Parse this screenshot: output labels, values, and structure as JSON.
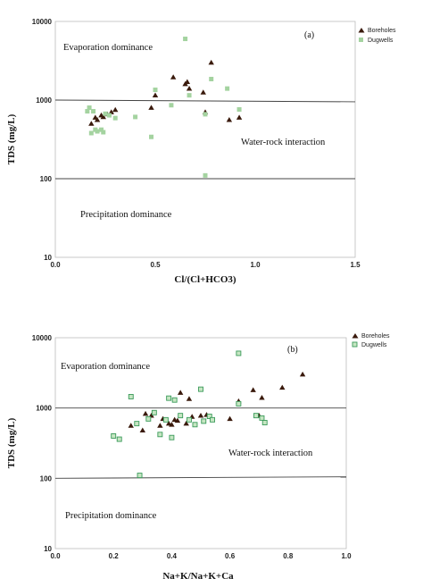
{
  "colors": {
    "boreholes": "#3a1a0c",
    "dugwells": "#a4d3a0",
    "dugwells_b_fill": "#c6e6c2",
    "dugwells_b_edge": "#3a9a5a"
  },
  "chart_data": [
    {
      "type": "scatter",
      "panel_label": "(a)",
      "xlabel": "Cl/(Cl+HCO3)",
      "ylabel": "TDS (mg/L)",
      "xlim": [
        0,
        1.5
      ],
      "ylim": [
        10,
        10000
      ],
      "yscale": "log",
      "grid": false,
      "legend_position": "top-right",
      "x_ticks": [
        "0.0",
        "0.5",
        "1.0",
        "1.5"
      ],
      "y_ticks": [
        "10",
        "100",
        "1000",
        "10000"
      ],
      "reference_lines": [
        {
          "x": [
            0,
            1.5
          ],
          "y": [
            1000,
            950
          ]
        },
        {
          "x": [
            0,
            1.5
          ],
          "y": [
            100,
            100
          ]
        }
      ],
      "regions": [
        "Evaporation dominance",
        "Water-rock interaction",
        "Precipitation dominance"
      ],
      "series": [
        {
          "name": "Boreholes",
          "marker": "triangle",
          "x": [
            0.18,
            0.2,
            0.21,
            0.23,
            0.24,
            0.26,
            0.28,
            0.3,
            0.48,
            0.5,
            0.59,
            0.65,
            0.66,
            0.67,
            0.74,
            0.75,
            0.78,
            0.87,
            0.92
          ],
          "y": [
            500,
            600,
            560,
            640,
            610,
            660,
            700,
            750,
            800,
            1150,
            1950,
            1600,
            1700,
            1400,
            1250,
            700,
            3000,
            560,
            600
          ]
        },
        {
          "name": "Dugwells",
          "marker": "square",
          "x": [
            0.16,
            0.17,
            0.18,
            0.19,
            0.2,
            0.21,
            0.23,
            0.24,
            0.25,
            0.27,
            0.3,
            0.4,
            0.48,
            0.5,
            0.58,
            0.65,
            0.67,
            0.75,
            0.75,
            0.78,
            0.86,
            0.92
          ],
          "y": [
            720,
            800,
            380,
            720,
            420,
            400,
            420,
            390,
            670,
            640,
            590,
            610,
            340,
            1350,
            860,
            6000,
            1150,
            660,
            110,
            1850,
            1400,
            760
          ]
        }
      ]
    },
    {
      "type": "scatter",
      "panel_label": "(b)",
      "xlabel": "Na+K/Na+K+Ca",
      "ylabel": "TDS (mg/L)",
      "xlim": [
        0,
        1.0
      ],
      "ylim": [
        10,
        10000
      ],
      "yscale": "log",
      "grid": false,
      "legend_position": "top-right",
      "x_ticks": [
        "0.0",
        "0.2",
        "0.4",
        "0.6",
        "0.8",
        "1.0"
      ],
      "y_ticks": [
        "10",
        "100",
        "1000",
        "10000"
      ],
      "reference_lines": [
        {
          "x": [
            0,
            1.0
          ],
          "y": [
            1000,
            1000
          ]
        },
        {
          "x": [
            0,
            1.0
          ],
          "y": [
            100,
            105
          ]
        }
      ],
      "regions": [
        "Evaporation dominance",
        "Water-rock interaction",
        "Precipitation dominance"
      ],
      "series": [
        {
          "name": "Boreholes",
          "marker": "triangle",
          "x": [
            0.26,
            0.3,
            0.31,
            0.33,
            0.36,
            0.37,
            0.39,
            0.4,
            0.41,
            0.42,
            0.43,
            0.45,
            0.46,
            0.47,
            0.5,
            0.52,
            0.6,
            0.63,
            0.68,
            0.7,
            0.71,
            0.78,
            0.85
          ],
          "y": [
            560,
            480,
            830,
            780,
            560,
            700,
            600,
            580,
            680,
            660,
            1650,
            600,
            1350,
            750,
            780,
            800,
            700,
            1250,
            1800,
            780,
            1400,
            1950,
            3000
          ],
          "note": "values estimated from plot"
        },
        {
          "name": "Dugwells",
          "marker": "square",
          "x": [
            0.2,
            0.22,
            0.26,
            0.28,
            0.29,
            0.32,
            0.34,
            0.36,
            0.38,
            0.39,
            0.4,
            0.41,
            0.43,
            0.46,
            0.48,
            0.5,
            0.51,
            0.53,
            0.54,
            0.63,
            0.63,
            0.69,
            0.71,
            0.72
          ],
          "y": [
            400,
            360,
            1450,
            600,
            110,
            700,
            860,
            420,
            680,
            1380,
            380,
            1300,
            780,
            680,
            580,
            1850,
            650,
            760,
            680,
            1150,
            6000,
            780,
            720,
            620
          ]
        }
      ]
    }
  ]
}
